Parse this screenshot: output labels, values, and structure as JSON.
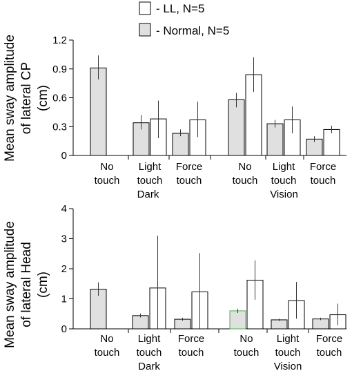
{
  "legend": [
    {
      "swatch": "#ffffff",
      "label": "- LL, N=5"
    },
    {
      "swatch": "#e0e0e0",
      "label": "- Normal, N=5"
    }
  ],
  "colors": {
    "normal": "#e0e0e0",
    "ll": "#ffffff",
    "axis": "#000000",
    "error": "#333333",
    "normal_highlight_edge": "#4caf50"
  },
  "chart_data": [
    {
      "type": "bar",
      "ylabel_lines": [
        "Mean sway amplitude",
        "of lateral CP",
        "(cm)"
      ],
      "ylim": [
        0,
        1.2
      ],
      "yticks": [
        0,
        0.3,
        0.6,
        0.9,
        1.2
      ],
      "ytick_labels": [
        "0",
        "0.3",
        "0.6",
        "0.9",
        "1.2"
      ],
      "grid": false,
      "categories": [
        {
          "lines": [
            "No",
            "touch"
          ]
        },
        {
          "lines": [
            "Light",
            "touch"
          ]
        },
        {
          "lines": [
            "Force",
            "touch"
          ]
        },
        {
          "lines": [
            "No",
            "touch"
          ]
        },
        {
          "lines": [
            "Light",
            "touch"
          ]
        },
        {
          "lines": [
            "Force",
            "touch"
          ]
        }
      ],
      "groups": [
        {
          "label": "Dark",
          "categories": [
            0,
            1,
            2
          ]
        },
        {
          "label": "Vision",
          "categories": [
            3,
            4,
            5
          ]
        }
      ],
      "series": [
        {
          "name": "Normal, N=5",
          "values": [
            0.91,
            0.34,
            0.23,
            0.58,
            0.33,
            0.17
          ],
          "err_low": [
            0.79,
            0.27,
            0.2,
            0.5,
            0.29,
            0.14
          ],
          "err_high": [
            1.04,
            0.42,
            0.27,
            0.65,
            0.37,
            0.2
          ]
        },
        {
          "name": "LL, N=5",
          "values": [
            null,
            0.38,
            0.37,
            0.84,
            0.37,
            0.27
          ],
          "err_low": [
            null,
            0.18,
            0.19,
            0.66,
            0.23,
            0.23
          ],
          "err_high": [
            null,
            0.57,
            0.56,
            1.02,
            0.51,
            0.31
          ]
        }
      ]
    },
    {
      "type": "bar",
      "ylabel_lines": [
        "Mean sway amplitude",
        "of lateral Head",
        "(cm)"
      ],
      "ylim": [
        0,
        4
      ],
      "yticks": [
        0,
        1,
        2,
        3,
        4
      ],
      "ytick_labels": [
        "0",
        "1",
        "2",
        "3",
        "4"
      ],
      "grid": false,
      "categories": [
        {
          "lines": [
            "No",
            "touch"
          ]
        },
        {
          "lines": [
            "Light",
            "touch"
          ]
        },
        {
          "lines": [
            "Force",
            "touch"
          ]
        },
        {
          "lines": [
            "No",
            "touch"
          ]
        },
        {
          "lines": [
            "Light",
            "touch"
          ]
        },
        {
          "lines": [
            "Force",
            "touch"
          ]
        }
      ],
      "groups": [
        {
          "label": "Dark",
          "categories": [
            0,
            1,
            2
          ]
        },
        {
          "label": "Vision",
          "categories": [
            3,
            4,
            5
          ]
        }
      ],
      "series": [
        {
          "name": "Normal, N=5",
          "values": [
            1.32,
            0.44,
            0.32,
            0.6,
            0.3,
            0.33
          ],
          "err_low": [
            1.1,
            0.38,
            0.27,
            0.53,
            0.26,
            0.29
          ],
          "err_high": [
            1.55,
            0.51,
            0.37,
            0.67,
            0.34,
            0.37
          ]
        },
        {
          "name": "LL, N=5",
          "values": [
            null,
            1.36,
            1.23,
            1.62,
            0.94,
            0.47
          ],
          "err_low": [
            null,
            0.0,
            0.0,
            0.97,
            0.34,
            0.12
          ],
          "err_high": [
            null,
            3.1,
            2.52,
            2.28,
            1.56,
            0.84
          ]
        }
      ]
    }
  ]
}
